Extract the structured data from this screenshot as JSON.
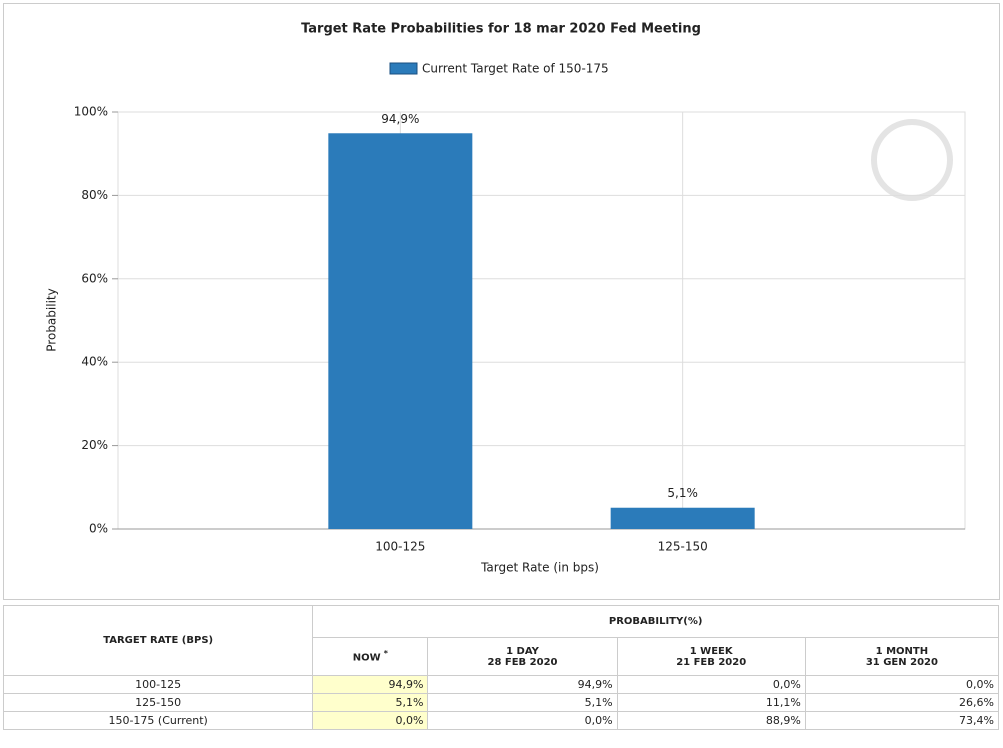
{
  "chart_data": {
    "type": "bar",
    "title": "Target Rate Probabilities for 18 mar 2020 Fed Meeting",
    "categories": [
      "100-125",
      "125-150"
    ],
    "series": [
      {
        "name": "Current Target Rate of 150-175",
        "color": "#2b7bba",
        "values": [
          94.9,
          5.1
        ],
        "value_labels": [
          "94,9%",
          "5,1%"
        ]
      }
    ],
    "x_label": "Target Rate (in bps)",
    "y_label": "Probability",
    "ylim": [
      0,
      100
    ],
    "yticks": [
      {
        "value": 0,
        "label": "0%"
      },
      {
        "value": 20,
        "label": "20%"
      },
      {
        "value": 40,
        "label": "40%"
      },
      {
        "value": 60,
        "label": "60%"
      },
      {
        "value": 80,
        "label": "80%"
      },
      {
        "value": 100,
        "label": "100%"
      }
    ],
    "grid": true,
    "legend": "top"
  },
  "table": {
    "header": {
      "rate": "TARGET RATE (BPS)",
      "probability": "PROBABILITY(%)",
      "columns": [
        {
          "label": "NOW",
          "note": "*"
        },
        {
          "label": "1 DAY",
          "date": "28 FEB 2020"
        },
        {
          "label": "1 WEEK",
          "date": "21 FEB 2020"
        },
        {
          "label": "1 MONTH",
          "date": "31 GEN 2020"
        }
      ]
    },
    "rows": [
      [
        "100-125",
        "94,9%",
        "94,9%",
        "0,0%",
        "0,0%"
      ],
      [
        "125-150",
        "5,1%",
        "5,1%",
        "11,1%",
        "26,6%"
      ],
      [
        "150-175 (Current)",
        "0,0%",
        "0,0%",
        "88,9%",
        "73,4%"
      ]
    ]
  }
}
